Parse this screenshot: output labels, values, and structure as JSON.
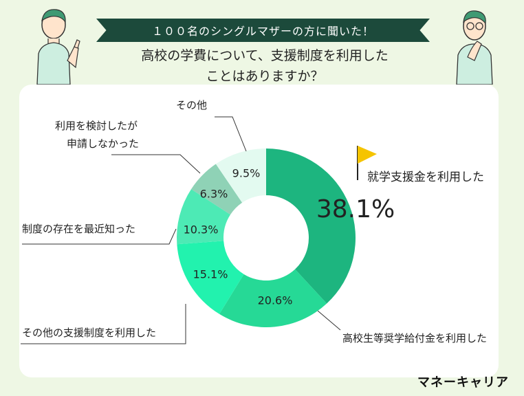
{
  "header": {
    "banner": "１００名のシングルマザーの方に聞いた！",
    "question_line1": "高校の学費について、支援制度を利用した",
    "question_line2": "ことはありますか？"
  },
  "chart_data": {
    "type": "pie",
    "donut": true,
    "slices": [
      {
        "label": "就学支援金を利用した",
        "value": 38.1,
        "display": "38.1%",
        "color": "#1db57f"
      },
      {
        "label": "高校生等奨学給付金を利用した",
        "value": 20.6,
        "display": "20.6%",
        "color": "#26d996"
      },
      {
        "label": "その他の支援制度を利用した",
        "value": 15.1,
        "display": "15.1%",
        "color": "#22f2ae"
      },
      {
        "label": "制度の存在を最近知った",
        "value": 10.3,
        "display": "10.3%",
        "color": "#4deab5"
      },
      {
        "label": "利用を検討したが申請しなかった",
        "value": 6.3,
        "display": "6.3%",
        "color": "#8fd2b6"
      },
      {
        "label": "その他",
        "value": 9.5,
        "display": "9.5%",
        "color": "#e3faf0"
      }
    ]
  },
  "labels": {
    "l1": "就学支援金を利用した",
    "l2": "高校生等奨学給付金を利用した",
    "l3": "その他の支援制度を利用した",
    "l4": "制度の存在を最近知った",
    "l5a": "利用を検討したが",
    "l5b": "申請しなかった",
    "l6": "その他"
  },
  "brand": "マネーキャリア",
  "colors": {
    "accent": "#1c4a3b",
    "flag": "#f5c400",
    "background": "#eef7e4"
  }
}
